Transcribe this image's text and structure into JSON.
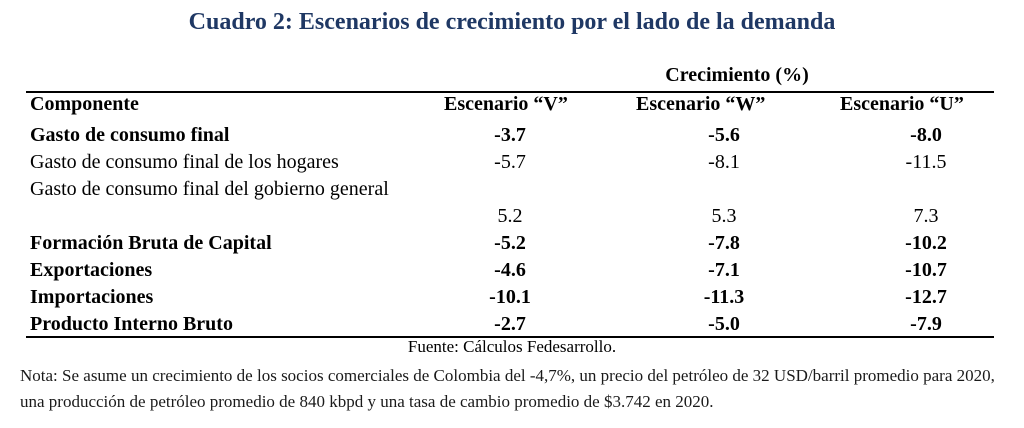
{
  "title": "Cuadro 2: Escenarios de crecimiento por el lado de la demanda",
  "group_header": "Crecimiento (%)",
  "columns": {
    "component": "Componente",
    "v": "Escenario “V”",
    "w": "Escenario “W”",
    "u": "Escenario “U”"
  },
  "rows": [
    {
      "label": "Gasto de consumo final",
      "v": "-3.7",
      "w": "-5.6",
      "u": "-8.0",
      "bold": true
    },
    {
      "label": "Gasto de consumo final de los hogares",
      "v": "-5.7",
      "w": "-8.1",
      "u": "-11.5",
      "bold": false
    },
    {
      "label": "Gasto de consumo final del gobierno general",
      "v": "5.2",
      "w": "5.3",
      "u": "7.3",
      "bold": false
    },
    {
      "label": "Formación Bruta de Capital",
      "v": "-5.2",
      "w": "-7.8",
      "u": "-10.2",
      "bold": true
    },
    {
      "label": "Exportaciones",
      "v": "-4.6",
      "w": "-7.1",
      "u": "-10.7",
      "bold": true
    },
    {
      "label": "Importaciones",
      "v": "-10.1",
      "w": "-11.3",
      "u": "-12.7",
      "bold": true
    },
    {
      "label": "Producto Interno Bruto",
      "v": "-2.7",
      "w": "-5.0",
      "u": "-7.9",
      "bold": true
    }
  ],
  "source": "Fuente: Cálculos Fedesarrollo.",
  "note": "Nota: Se asume un crecimiento de los socios comerciales de Colombia del -4,7%, un precio del petróleo de 32 USD/barril promedio para 2020, una producción de petróleo promedio de 840 kbpd y una tasa de cambio promedio de $3.742 en 2020."
}
